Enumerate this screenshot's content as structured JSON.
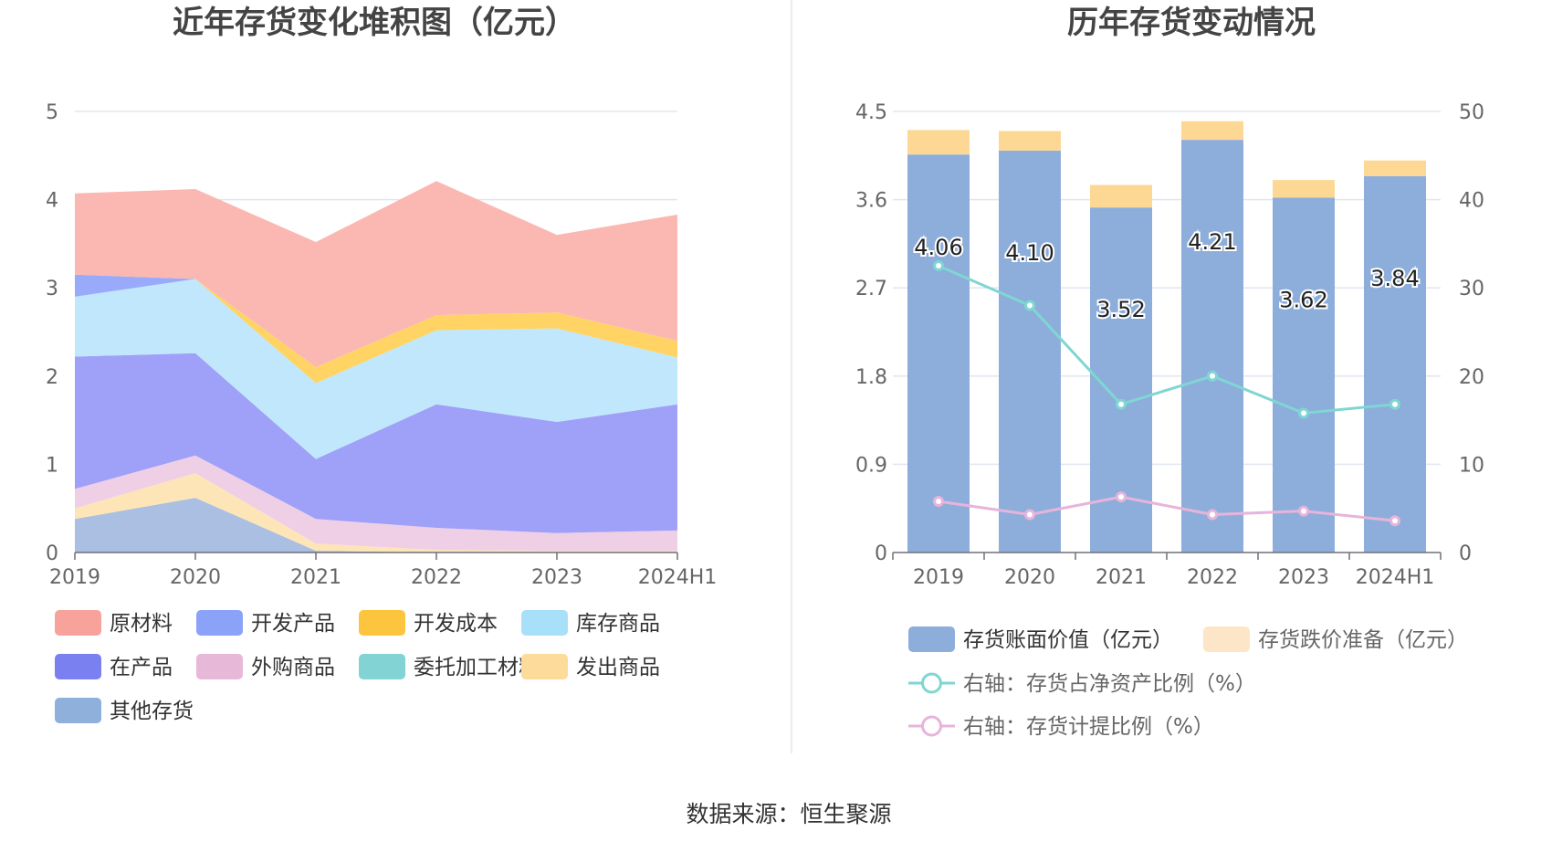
{
  "left_chart": {
    "title": "近年存货变化堆积图（亿元）",
    "y_ticks": [
      "0",
      "1",
      "2",
      "3",
      "4",
      "5"
    ],
    "legend_labels": [
      "原材料",
      "开发产品",
      "开发成本",
      "库存商品",
      "在产品",
      "外购商品",
      "委托加工材料",
      "发出商品",
      "其他存货"
    ]
  },
  "right_chart": {
    "title": "历年存货变动情况",
    "left_ticks": [
      "0",
      "0.9",
      "1.8",
      "2.7",
      "3.6",
      "4.5"
    ],
    "right_ticks": [
      "0",
      "10",
      "20",
      "30",
      "40",
      "50"
    ],
    "bar_labels": [
      "4.06",
      "4.10",
      "3.52",
      "4.21",
      "3.62",
      "3.84"
    ],
    "legend_labels": [
      "存货账面价值（亿元）",
      "存货跌价准备（亿元）",
      "右轴：存货占净资产比例（%）",
      "右轴：存货计提比例（%）"
    ]
  },
  "source_text": "数据来源：恒生聚源",
  "colors": {
    "raw": "#fbb8b2",
    "dev_products": "#9aaafb",
    "dev_cost": "#ffd465",
    "inventory_goods": "#c0e7fb",
    "wip": "#9fa0f8",
    "purchased": "#efcfe5",
    "consigned": "#88d8d8",
    "dispatched": "#fde5b8",
    "other": "#aabfe1",
    "bar": "#8daedb",
    "provision": "#fdd895",
    "ratio_line": "#7fd6d2",
    "prov_line": "#e7b4db",
    "legend_raw": "#f7a39b",
    "legend_dev_products": "#8aa3f8",
    "legend_dev_cost": "#fdc53d",
    "legend_inventory": "#a9e0f9",
    "legend_wip": "#7b80f0",
    "legend_purchased": "#e8b8d8",
    "legend_consigned": "#82d3d3",
    "legend_dispatched": "#fddb9a",
    "legend_other": "#8fb0da",
    "legend_provision": "#fde6c8"
  },
  "chart_data": [
    {
      "type": "area",
      "title": "近年存货变化堆积图（亿元）",
      "categories": [
        "2019",
        "2020",
        "2021",
        "2022",
        "2023",
        "2024H1"
      ],
      "ylim": [
        0,
        5
      ],
      "stacked": true,
      "series": [
        {
          "name": "其他存货",
          "values": [
            0.38,
            0.62,
            0.02,
            0.0,
            0.0,
            0.0
          ]
        },
        {
          "name": "发出商品",
          "values": [
            0.12,
            0.28,
            0.08,
            0.03,
            0.02,
            0.02
          ]
        },
        {
          "name": "委托加工材料",
          "values": [
            0.0,
            0.0,
            0.0,
            0.0,
            0.0,
            0.0
          ]
        },
        {
          "name": "外购商品",
          "values": [
            0.22,
            0.2,
            0.28,
            0.25,
            0.2,
            0.23
          ]
        },
        {
          "name": "在产品",
          "values": [
            1.5,
            1.16,
            0.68,
            1.4,
            1.26,
            1.43
          ]
        },
        {
          "name": "库存商品",
          "values": [
            0.68,
            0.84,
            0.86,
            0.84,
            1.06,
            0.53
          ]
        },
        {
          "name": "开发成本",
          "values": [
            0.0,
            0.0,
            0.18,
            0.17,
            0.18,
            0.19
          ]
        },
        {
          "name": "开发产品",
          "values": [
            0.25,
            0.0,
            0.0,
            0.0,
            0.0,
            0.0
          ]
        },
        {
          "name": "原材料",
          "values": [
            0.92,
            1.02,
            1.42,
            1.52,
            0.88,
            1.43
          ]
        }
      ],
      "grid": true,
      "legend_position": "bottom"
    },
    {
      "type": "bar",
      "title": "历年存货变动情况",
      "categories": [
        "2019",
        "2020",
        "2021",
        "2022",
        "2023",
        "2024H1"
      ],
      "ylim": [
        0,
        4.5
      ],
      "y2lim": [
        0,
        50
      ],
      "series": [
        {
          "name": "存货账面价值（亿元）",
          "values": [
            4.06,
            4.1,
            3.52,
            4.21,
            3.62,
            3.84
          ],
          "stack": "a"
        },
        {
          "name": "存货跌价准备（亿元）",
          "values": [
            0.25,
            0.2,
            0.23,
            0.19,
            0.18,
            0.16
          ],
          "stack": "a"
        },
        {
          "name": "右轴：存货占净资产比例（%）",
          "type": "line",
          "axis": "right",
          "values": [
            32.5,
            28.0,
            16.8,
            20.0,
            15.8,
            16.8
          ]
        },
        {
          "name": "右轴：存货计提比例（%）",
          "type": "line",
          "axis": "right",
          "values": [
            5.8,
            4.3,
            6.3,
            4.3,
            4.7,
            3.6
          ]
        }
      ],
      "grid": true,
      "legend_position": "bottom"
    }
  ]
}
